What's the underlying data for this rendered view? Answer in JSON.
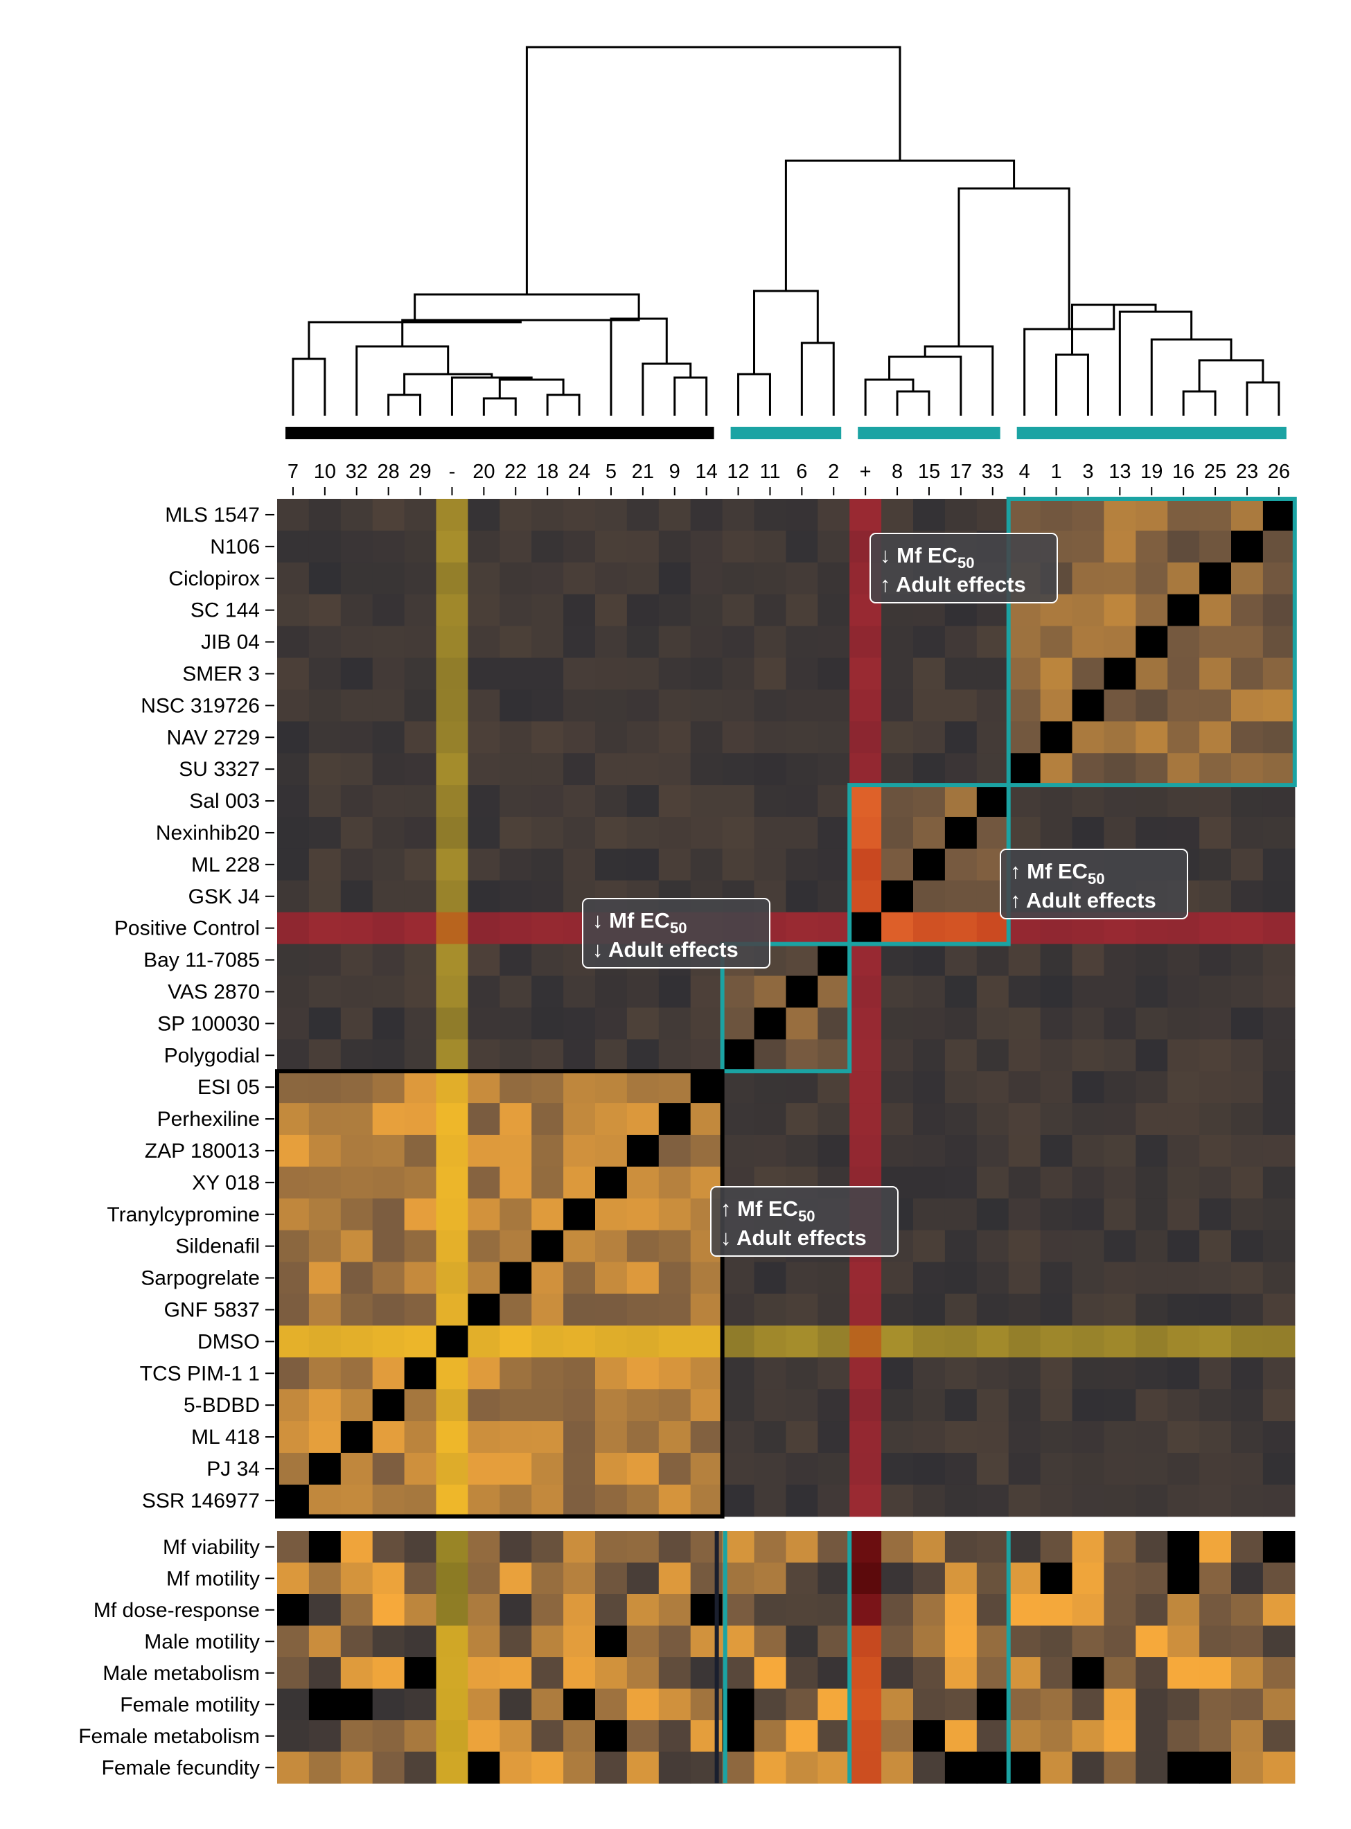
{
  "chart_data": {
    "type": "heatmap",
    "title": "",
    "columns": [
      "7",
      "10",
      "32",
      "28",
      "29",
      "-",
      "20",
      "22",
      "18",
      "24",
      "5",
      "21",
      "9",
      "14",
      "12",
      "11",
      "6",
      "2",
      "+",
      "8",
      "15",
      "17",
      "33",
      "4",
      "1",
      "3",
      "13",
      "19",
      "16",
      "25",
      "23",
      "26"
    ],
    "rows": [
      "MLS 1547",
      "N106",
      "Ciclopirox",
      "SC 144",
      "JIB 04",
      "SMER 3",
      "NSC 319726",
      "NAV 2729",
      "SU 3327",
      "Sal 003",
      "Nexinhib20",
      "ML 228",
      "GSK J4",
      "Positive Control",
      "Bay 11-7085",
      "VAS 2870",
      "SP 100030",
      "Polygodial",
      "ESI 05",
      "Perhexiline",
      "ZAP 180013",
      "XY 018",
      "Tranylcypromine",
      "Sildenafil",
      "Sarpogrelate",
      "GNF 5837",
      "DMSO",
      "TCS PIM-1 1",
      "5-BDBD",
      "ML 418",
      "PJ 34",
      "SSR 146977"
    ],
    "phenotypes": [
      "Mf viability",
      "Mf motility",
      "Mf dose-response",
      "Male motility",
      "Male metabolism",
      "Female motility",
      "Female metabolism",
      "Female fecundity"
    ],
    "cluster_column_groups": [
      {
        "columns": [
          "7",
          "10",
          "32",
          "28",
          "29",
          "-",
          "20",
          "22",
          "18",
          "24",
          "5",
          "21",
          "9",
          "14"
        ],
        "bar_color": "#000000"
      },
      {
        "columns": [
          "12",
          "11",
          "6",
          "2"
        ],
        "bar_color": "#1ba3a3"
      },
      {
        "columns": [
          "+",
          "8",
          "15",
          "17",
          "33"
        ],
        "bar_color": "#1ba3a3"
      },
      {
        "columns": [
          "4",
          "1",
          "3",
          "13",
          "19",
          "16",
          "25",
          "23",
          "26"
        ],
        "bar_color": "#1ba3a3"
      }
    ],
    "annotations": [
      {
        "arrow1": "↓",
        "text1": "Mf EC",
        "sub1": "50",
        "arrow2": "↑",
        "text2": "Adult effects"
      },
      {
        "arrow1": "↑",
        "text1": "Mf EC",
        "sub1": "50",
        "arrow2": "↑",
        "text2": "Adult effects"
      },
      {
        "arrow1": "↓",
        "text1": "Mf EC",
        "sub1": "50",
        "arrow2": "↓",
        "text2": "Adult effects"
      },
      {
        "arrow1": "↑",
        "text1": "Mf EC",
        "sub1": "50",
        "arrow2": "↓",
        "text2": "Adult effects"
      }
    ],
    "colors": {
      "low": "#2b2c33",
      "mid": "#7a5c40",
      "high": "#f6a93b",
      "diagonal": "#000000",
      "positive_control": "#8b2630",
      "dmso": "#b8972a",
      "cluster_teal": "#1ba3a3",
      "cluster_black": "#000000"
    }
  }
}
